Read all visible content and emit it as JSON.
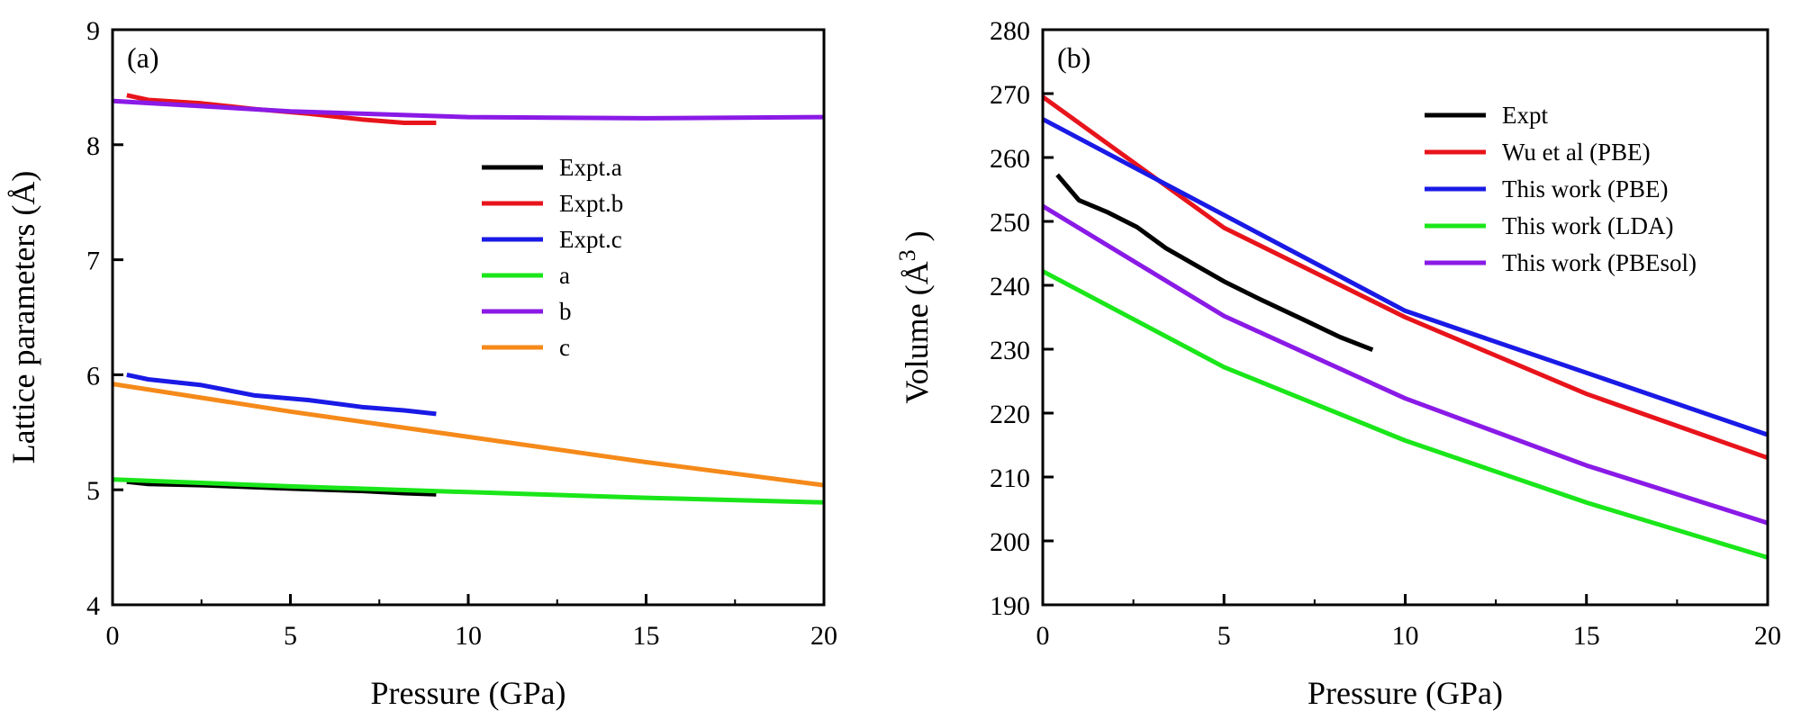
{
  "chart_data": [
    {
      "type": "line",
      "panel_label": "(a)",
      "xlabel": "Pressure (GPa)",
      "ylabel": "Lattice parameters (Å)",
      "xlim": [
        0,
        20
      ],
      "ylim": [
        4,
        9
      ],
      "xticks": [
        "0",
        "5",
        "10",
        "15",
        "20"
      ],
      "yticks": [
        "4",
        "5",
        "6",
        "7",
        "8",
        "9"
      ],
      "legend_position": "center-right",
      "series": [
        {
          "name": "Expt.a",
          "color": "#000000",
          "x": [
            0.4,
            1.0,
            2.5,
            5.0,
            7.0,
            8.2,
            9.1
          ],
          "y": [
            5.07,
            5.05,
            5.04,
            5.01,
            4.99,
            4.97,
            4.96
          ]
        },
        {
          "name": "Expt.b",
          "color": "#e8141b",
          "x": [
            0.4,
            1.0,
            2.5,
            4.0,
            5.5,
            7.0,
            8.2,
            9.1
          ],
          "y": [
            8.43,
            8.39,
            8.36,
            8.31,
            8.27,
            8.22,
            8.19,
            8.19
          ]
        },
        {
          "name": "Expt.c",
          "color": "#1a1ae6",
          "x": [
            0.4,
            1.0,
            2.5,
            4.0,
            5.5,
            7.0,
            8.2,
            9.1
          ],
          "y": [
            6.0,
            5.96,
            5.91,
            5.82,
            5.78,
            5.72,
            5.69,
            5.66
          ]
        },
        {
          "name": "a",
          "color": "#1ae61a",
          "x": [
            0,
            5,
            10,
            15,
            20
          ],
          "y": [
            5.09,
            5.03,
            4.98,
            4.93,
            4.89
          ]
        },
        {
          "name": "b",
          "color": "#8a1ae6",
          "x": [
            0,
            5,
            10,
            15,
            20
          ],
          "y": [
            8.38,
            8.29,
            8.24,
            8.23,
            8.24
          ]
        },
        {
          "name": "c",
          "color": "#f58a1a",
          "x": [
            0,
            5,
            10,
            15,
            20
          ],
          "y": [
            5.92,
            5.68,
            5.46,
            5.24,
            5.04
          ]
        }
      ]
    },
    {
      "type": "line",
      "panel_label": "(b)",
      "xlabel": "Pressure (GPa)",
      "ylabel": "Volume (Å",
      "ylabel_superscript": "3",
      "ylabel_close": ")",
      "xlim": [
        0,
        20
      ],
      "ylim": [
        190,
        280
      ],
      "xticks": [
        "0",
        "5",
        "10",
        "15",
        "20"
      ],
      "yticks": [
        "190",
        "200",
        "210",
        "220",
        "230",
        "240",
        "250",
        "260",
        "270",
        "280"
      ],
      "legend_position": "top-right",
      "series": [
        {
          "name": "Expt",
          "color": "#000000",
          "x": [
            0.4,
            1.0,
            1.8,
            2.6,
            3.4,
            5.0,
            6.0,
            7.2,
            8.2,
            9.1
          ],
          "y": [
            257.3,
            253.3,
            251.4,
            249.1,
            245.8,
            240.6,
            237.8,
            234.6,
            231.9,
            229.9
          ]
        },
        {
          "name": "Wu et al (PBE)",
          "color": "#e8141b",
          "x": [
            0,
            5,
            10,
            15,
            20
          ],
          "y": [
            269.5,
            249.0,
            235.0,
            223.0,
            213.0
          ]
        },
        {
          "name": "This work (PBE)",
          "color": "#1a1ae6",
          "x": [
            0,
            10,
            20
          ],
          "y": [
            266.0,
            236.0,
            216.6
          ]
        },
        {
          "name": "This work (LDA)",
          "color": "#1ae61a",
          "x": [
            0,
            5,
            10,
            15,
            20
          ],
          "y": [
            242.2,
            227.2,
            215.7,
            206.0,
            197.4
          ]
        },
        {
          "name": "This work (PBEsol)",
          "color": "#8a1ae6",
          "x": [
            0,
            5,
            10,
            15,
            20
          ],
          "y": [
            252.4,
            235.2,
            222.3,
            211.8,
            202.8
          ]
        }
      ]
    }
  ]
}
